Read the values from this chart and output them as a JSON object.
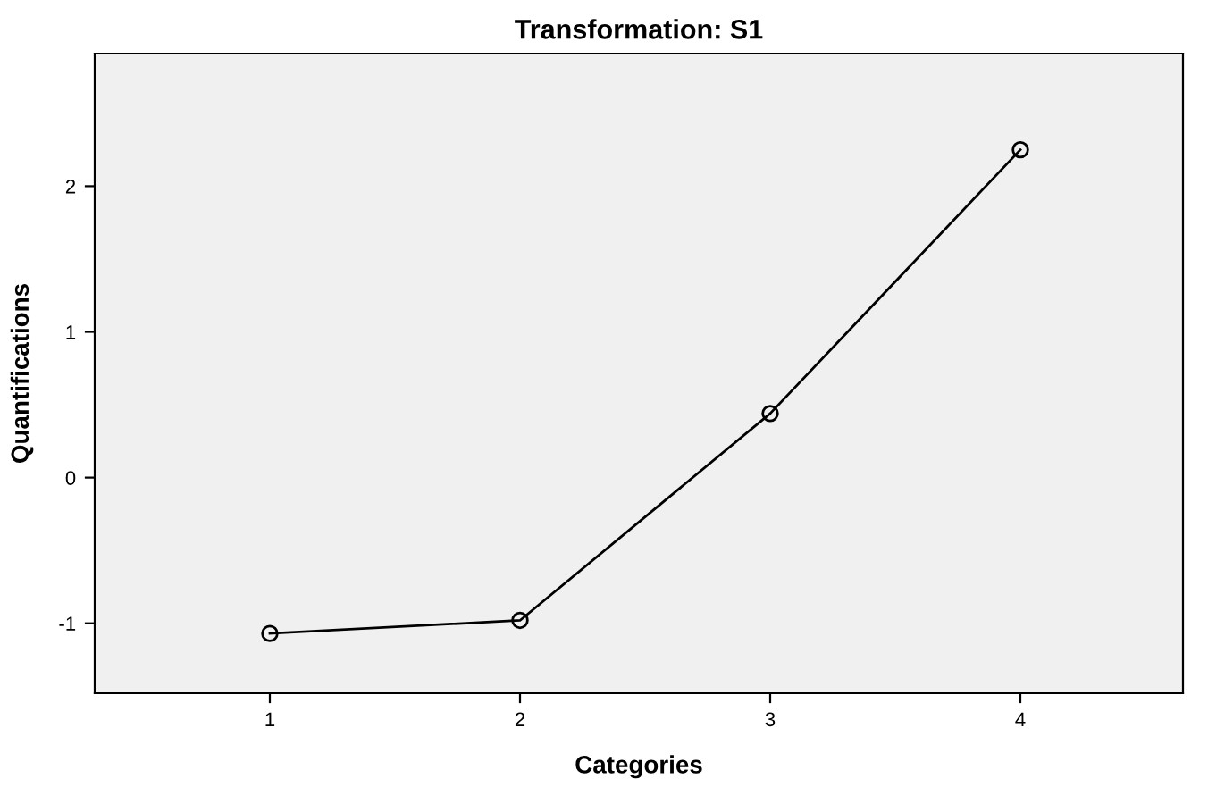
{
  "chart_data": {
    "type": "line",
    "title": "Transformation: S1",
    "xlabel": "Categories",
    "ylabel": "Quantifications",
    "x": [
      1,
      2,
      3,
      4
    ],
    "series": [
      {
        "color": "#000000",
        "values": [
          -1.07,
          -0.98,
          0.44,
          2.25
        ]
      }
    ],
    "xlim": [
      0.3,
      4.65
    ],
    "xticks": [
      1,
      2,
      3,
      4
    ],
    "ylim": [
      -1.48,
      2.91
    ],
    "yticks": [
      -1,
      0,
      1,
      2
    ],
    "marker": "circle",
    "line_style": "solid",
    "grid": false,
    "legend": false
  }
}
